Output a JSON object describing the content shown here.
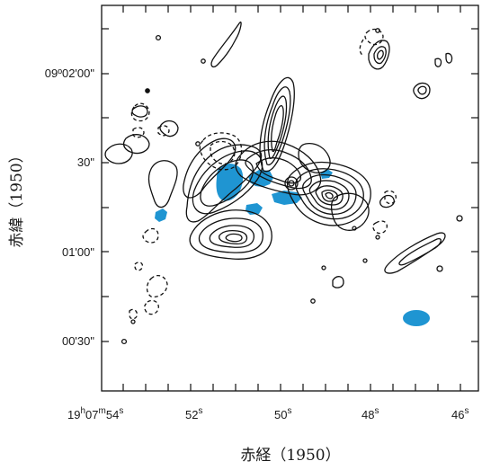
{
  "figure": {
    "xlabel": "赤経（1950）",
    "ylabel": "赤緯（1950）",
    "y_ticks": [
      {
        "label": "09º02'00\""
      },
      {
        "label": "30\""
      },
      {
        "label": "01'00\""
      },
      {
        "label": "00'30\""
      }
    ],
    "x_ticks": [
      {
        "main": "19",
        "sup1": "h",
        "mid": "07",
        "sup2": "m",
        "end": "54",
        "sup3": "s"
      },
      {
        "main": "52",
        "sup1": "s"
      },
      {
        "main": "50",
        "sup1": "s"
      },
      {
        "main": "48",
        "sup1": "s"
      },
      {
        "main": "46",
        "sup1": "s"
      }
    ],
    "colors": {
      "contour": "#111111",
      "highlight": "#1f95d2",
      "frame": "#111111"
    }
  }
}
